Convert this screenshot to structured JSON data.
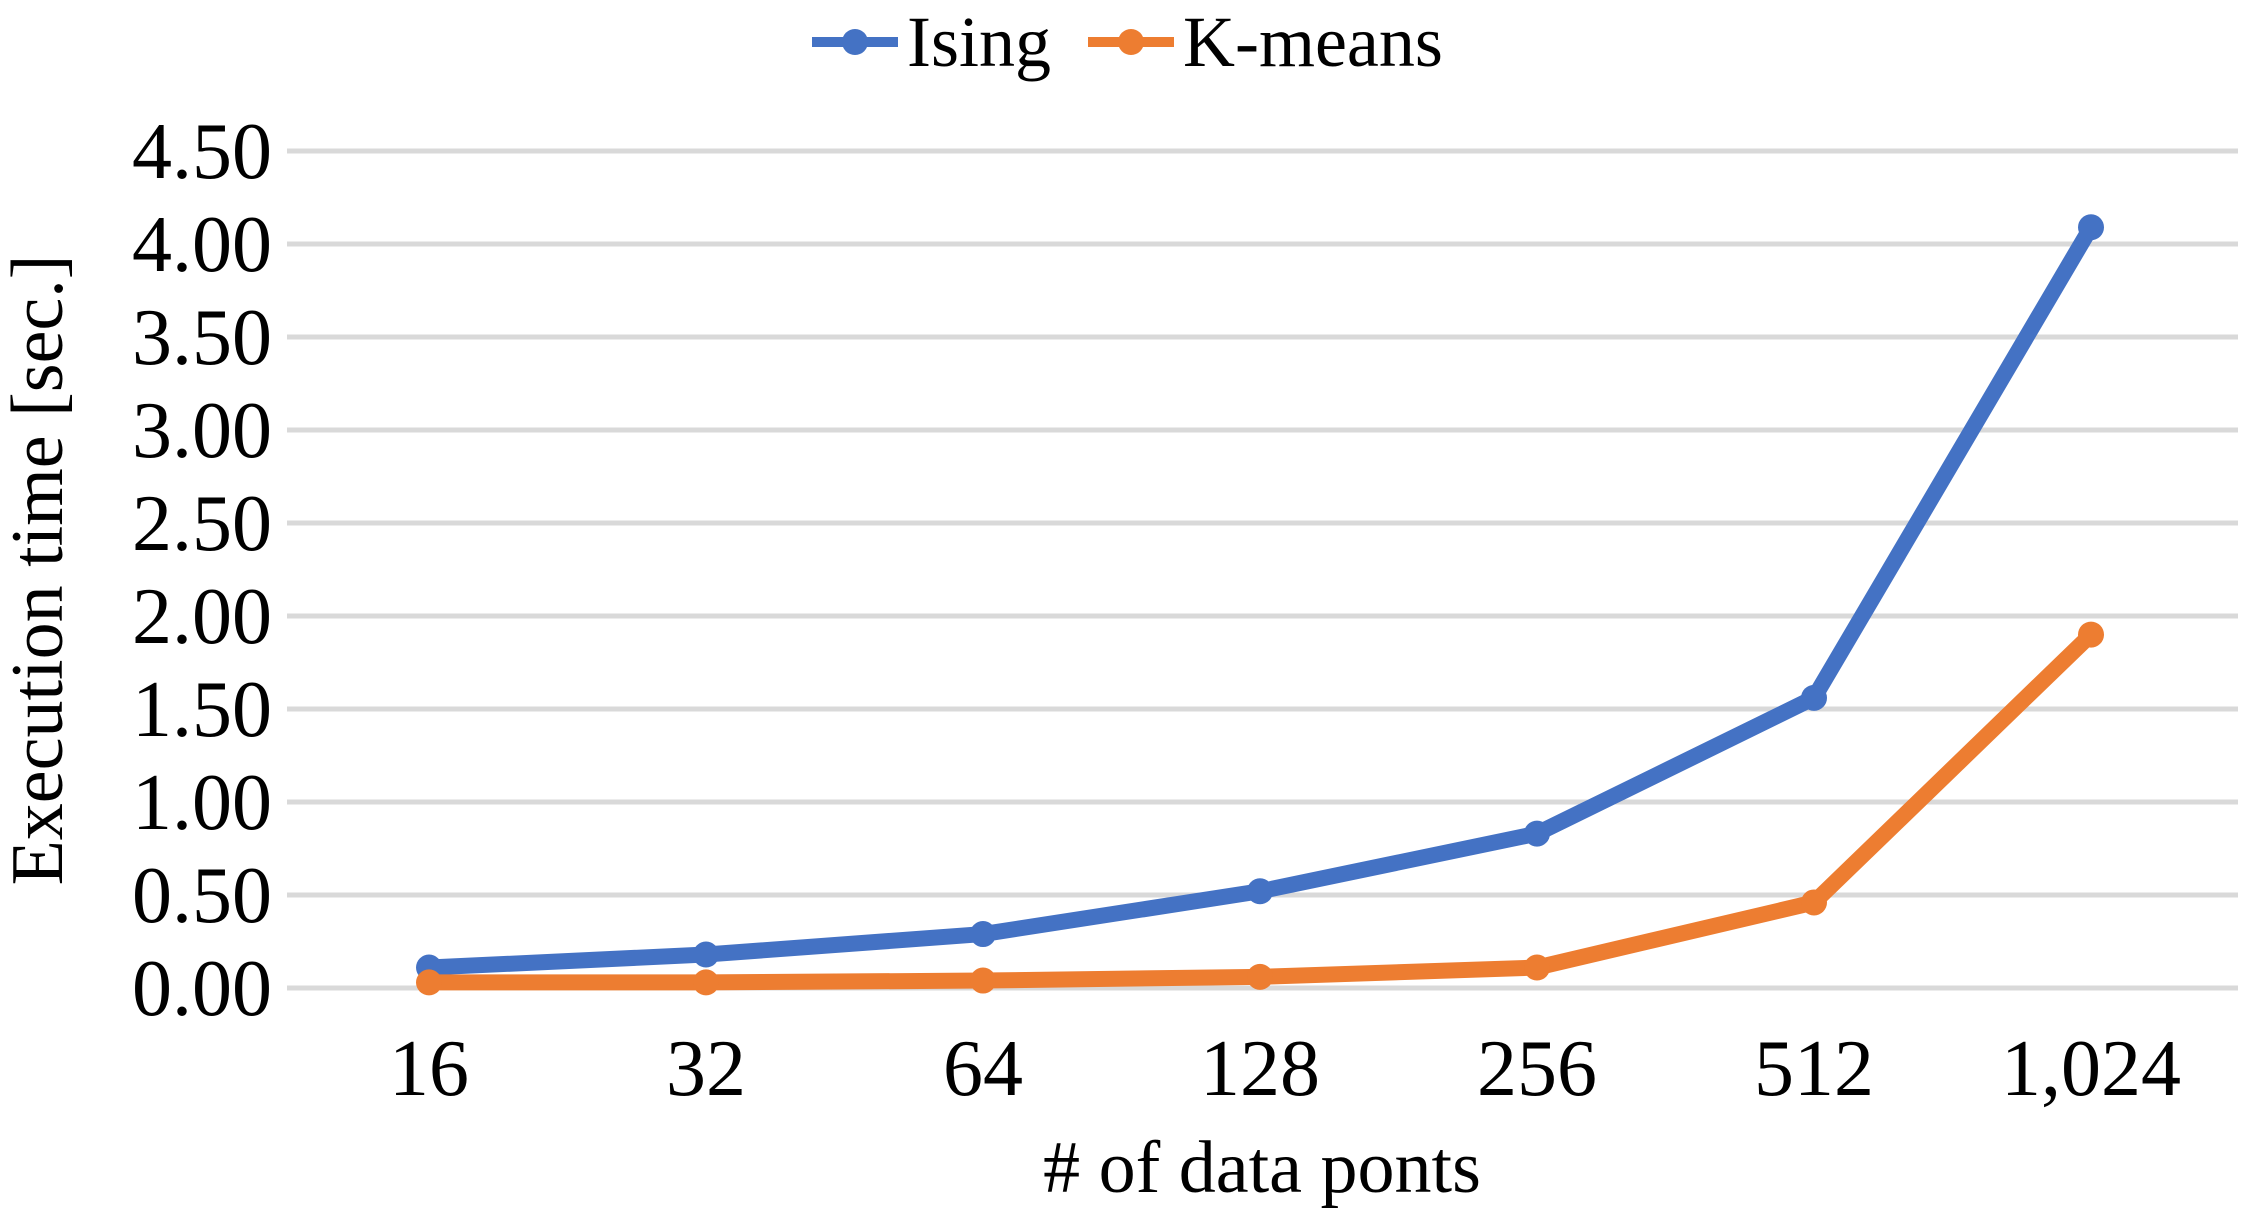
{
  "chart_data": {
    "type": "line",
    "title": "",
    "xlabel": "# of data ponts",
    "ylabel": "Execution time [sec.]",
    "categories": [
      "16",
      "32",
      "64",
      "128",
      "256",
      "512",
      "1,024"
    ],
    "series": [
      {
        "name": "Ising",
        "color": "#4472C4",
        "values": [
          0.11,
          0.18,
          0.29,
          0.52,
          0.83,
          1.56,
          4.09
        ]
      },
      {
        "name": "K-means",
        "color": "#ED7D31",
        "values": [
          0.03,
          0.03,
          0.04,
          0.06,
          0.11,
          0.46,
          1.9
        ]
      }
    ],
    "ylim": [
      0,
      4.5
    ],
    "ytick_step": 0.5,
    "ytick_labels": [
      "0.00",
      "0.50",
      "1.00",
      "1.50",
      "2.00",
      "2.50",
      "3.00",
      "3.50",
      "4.00",
      "4.50"
    ],
    "grid": "horizontal",
    "gridline_color": "#D9D9D9",
    "text_color": "#000000",
    "background": "#FFFFFF",
    "legend_position": "top-center",
    "marker_style": "circle"
  }
}
